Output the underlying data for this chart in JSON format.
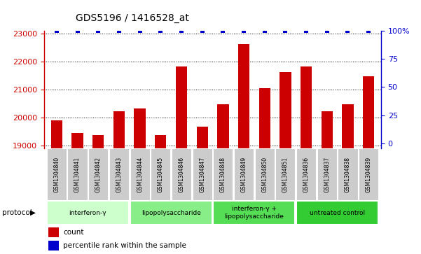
{
  "title": "GDS5196 / 1416528_at",
  "samples": [
    "GSM1304840",
    "GSM1304841",
    "GSM1304842",
    "GSM1304843",
    "GSM1304844",
    "GSM1304845",
    "GSM1304846",
    "GSM1304847",
    "GSM1304848",
    "GSM1304849",
    "GSM1304850",
    "GSM1304851",
    "GSM1304836",
    "GSM1304837",
    "GSM1304838",
    "GSM1304839"
  ],
  "counts": [
    19900,
    19450,
    19380,
    20230,
    20320,
    19370,
    21820,
    19670,
    20480,
    22620,
    21060,
    21610,
    21820,
    20230,
    20480,
    21480
  ],
  "percentile": [
    100,
    100,
    100,
    100,
    100,
    100,
    100,
    100,
    100,
    100,
    100,
    100,
    100,
    100,
    100,
    100
  ],
  "bar_color": "#cc0000",
  "dot_color": "#0000cc",
  "ylim_left": [
    18900,
    23100
  ],
  "ylim_right": [
    -4.5,
    100
  ],
  "yticks_left": [
    19000,
    20000,
    21000,
    22000,
    23000
  ],
  "yticks_right": [
    0,
    25,
    50,
    75,
    100
  ],
  "groups": [
    {
      "label": "interferon-γ",
      "start": 0,
      "end": 3,
      "color": "#ccffcc"
    },
    {
      "label": "lipopolysaccharide",
      "start": 4,
      "end": 7,
      "color": "#88ee88"
    },
    {
      "label": "interferon-γ +\nlipopolysaccharide",
      "start": 8,
      "end": 11,
      "color": "#55dd55"
    },
    {
      "label": "untreated control",
      "start": 12,
      "end": 15,
      "color": "#33cc33"
    }
  ],
  "protocol_label": "protocol",
  "legend_count_label": "count",
  "legend_percentile_label": "percentile rank within the sample",
  "bg_color": "#ffffff",
  "plot_bg_color": "#ffffff",
  "sample_box_color": "#cccccc",
  "left_axis_color": "#cc0000",
  "right_axis_color": "#0000cc"
}
